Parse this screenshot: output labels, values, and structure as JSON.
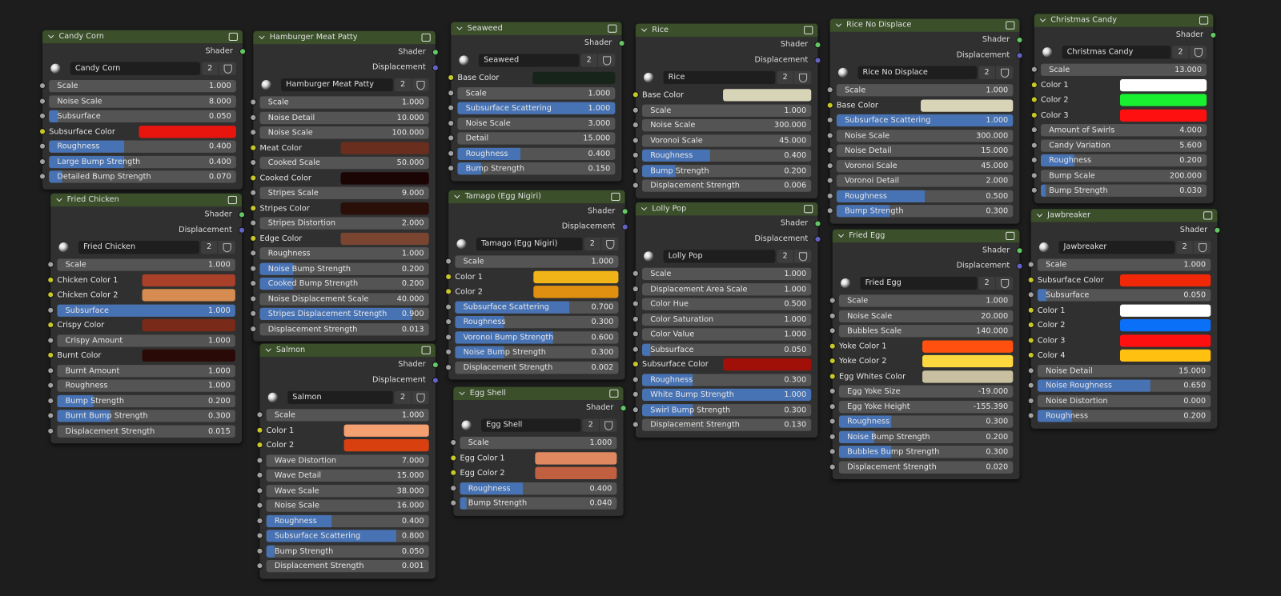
{
  "nodes": [
    {
      "title": "Candy Corn",
      "outputs": [
        "Shader"
      ],
      "material": "Candy Corn",
      "users": 2,
      "inputs": [
        {
          "label": "Scale",
          "value": "1.000"
        },
        {
          "label": "Noise Scale",
          "value": "8.000"
        },
        {
          "label": "Subsurface",
          "value": "0.050",
          "factor": true
        },
        {
          "label": "Subsurface Color",
          "color": "#e8150f"
        },
        {
          "label": "Roughness",
          "value": "0.400",
          "factor": true
        },
        {
          "label": "Large Bump Strength",
          "value": "0.400",
          "factor": true
        },
        {
          "label": "Detailed Bump Strength",
          "value": "0.070",
          "factor": true
        }
      ]
    },
    {
      "title": "Fried Chicken",
      "outputs": [
        "Shader",
        "Displacement"
      ],
      "material": "Fried Chicken",
      "users": 2,
      "inputs": [
        {
          "label": "Scale",
          "value": "1.000"
        },
        {
          "label": "Chicken Color 1",
          "color": "#a8402a"
        },
        {
          "label": "Chicken Color 2",
          "color": "#d68c50"
        },
        {
          "label": "Subsurface",
          "value": "1.000",
          "factor": true
        },
        {
          "label": "Crispy Color",
          "color": "#7a2a18"
        },
        {
          "label": "Crispy Amount",
          "value": "1.000"
        },
        {
          "label": "Burnt Color",
          "color": "#2a0a06"
        },
        {
          "label": "Burnt Amount",
          "value": "1.000"
        },
        {
          "label": "Roughness",
          "value": "1.000"
        },
        {
          "label": "Bump Strength",
          "value": "0.200",
          "factor": true
        },
        {
          "label": "Burnt Bump Strength",
          "value": "0.300",
          "factor": true
        },
        {
          "label": "Displacement Strength",
          "value": "0.015"
        }
      ]
    },
    {
      "title": "Hamburger Meat Patty",
      "outputs": [
        "Shader",
        "Displacement"
      ],
      "material": "Hamburger Meat Patty",
      "users": 2,
      "inputs": [
        {
          "label": "Scale",
          "value": "1.000"
        },
        {
          "label": "Noise Detail",
          "value": "10.000"
        },
        {
          "label": "Noise Scale",
          "value": "100.000"
        },
        {
          "label": "Meat Color",
          "color": "#6a2e1e"
        },
        {
          "label": "Cooked Scale",
          "value": "50.000"
        },
        {
          "label": "Cooked Color",
          "color": "#1a0404"
        },
        {
          "label": "Stripes Scale",
          "value": "9.000"
        },
        {
          "label": "Stripes Color",
          "color": "#2a0e08"
        },
        {
          "label": "Stripes Distortion",
          "value": "2.000"
        },
        {
          "label": "Edge Color",
          "color": "#7a4530"
        },
        {
          "label": "Roughness",
          "value": "1.000"
        },
        {
          "label": "Noise Bump Strength",
          "value": "0.200",
          "factor": true
        },
        {
          "label": "Cooked Bump Strength",
          "value": "0.200",
          "factor": true
        },
        {
          "label": "Noise Displacement Scale",
          "value": "40.000"
        },
        {
          "label": "Stripes Displacement Strength",
          "value": "0.900",
          "factor": true
        },
        {
          "label": "Displacement Strength",
          "value": "0.013"
        }
      ]
    },
    {
      "title": "Salmon",
      "outputs": [
        "Shader",
        "Displacement"
      ],
      "material": "Salmon",
      "users": 2,
      "inputs": [
        {
          "label": "Scale",
          "value": "1.000"
        },
        {
          "label": "Color 1",
          "color": "#f5a070"
        },
        {
          "label": "Color 2",
          "color": "#d84010"
        },
        {
          "label": "Wave Distortion",
          "value": "7.000"
        },
        {
          "label": "Wave Detail",
          "value": "15.000"
        },
        {
          "label": "Wave Scale",
          "value": "38.000"
        },
        {
          "label": "Noise Scale",
          "value": "16.000"
        },
        {
          "label": "Roughness",
          "value": "0.400",
          "factor": true
        },
        {
          "label": "Subsurface Scattering",
          "value": "0.800",
          "factor": true
        },
        {
          "label": "Bump Strength",
          "value": "0.050",
          "factor": true
        },
        {
          "label": "Displacement Strength",
          "value": "0.001"
        }
      ]
    },
    {
      "title": "Seaweed",
      "outputs": [
        "Shader"
      ],
      "material": "Seaweed",
      "users": 2,
      "inputs": [
        {
          "label": "Base Color",
          "color": "#16241a"
        },
        {
          "label": "Scale",
          "value": "1.000"
        },
        {
          "label": "Subsurface Scattering",
          "value": "1.000",
          "factor": true
        },
        {
          "label": "Noise Scale",
          "value": "3.000"
        },
        {
          "label": "Detail",
          "value": "15.000"
        },
        {
          "label": "Roughness",
          "value": "0.400",
          "factor": true
        },
        {
          "label": "Bump Strength",
          "value": "0.150",
          "factor": true
        }
      ]
    },
    {
      "title": "Tamago (Egg Nigiri)",
      "outputs": [
        "Shader",
        "Displacement"
      ],
      "material": "Tamago (Egg Nigiri)",
      "users": 2,
      "inputs": [
        {
          "label": "Scale",
          "value": "1.000"
        },
        {
          "label": "Color 1",
          "color": "#f0b418"
        },
        {
          "label": "Color 2",
          "color": "#e09010"
        },
        {
          "label": "Subsurface Scattering",
          "value": "0.700",
          "factor": true
        },
        {
          "label": "Roughness",
          "value": "0.300",
          "factor": true
        },
        {
          "label": "Voronoi Bump Strength",
          "value": "0.600",
          "factor": true
        },
        {
          "label": "Noise Bump Strength",
          "value": "0.300",
          "factor": true
        },
        {
          "label": "Displacement Strength",
          "value": "0.002"
        }
      ]
    },
    {
      "title": "Egg Shell",
      "outputs": [
        "Shader"
      ],
      "material": "Egg Shell",
      "users": 2,
      "inputs": [
        {
          "label": "Scale",
          "value": "1.000"
        },
        {
          "label": "Egg Color 1",
          "color": "#e08860"
        },
        {
          "label": "Egg Color 2",
          "color": "#c06040"
        },
        {
          "label": "Roughness",
          "value": "0.400",
          "factor": true
        },
        {
          "label": "Bump Strength",
          "value": "0.040",
          "factor": true
        }
      ]
    },
    {
      "title": "Rice",
      "outputs": [
        "Shader",
        "Displacement"
      ],
      "material": "Rice",
      "users": 2,
      "inputs": [
        {
          "label": "Base Color",
          "color": "#d8d4b8"
        },
        {
          "label": "Scale",
          "value": "1.000"
        },
        {
          "label": "Noise Scale",
          "value": "300.000"
        },
        {
          "label": "Voronoi Scale",
          "value": "45.000"
        },
        {
          "label": "Roughness",
          "value": "0.400",
          "factor": true
        },
        {
          "label": "Bump Strength",
          "value": "0.200",
          "factor": true
        },
        {
          "label": "Displacement Strength",
          "value": "0.006"
        }
      ]
    },
    {
      "title": "Lolly Pop",
      "outputs": [
        "Shader",
        "Displacement"
      ],
      "material": "Lolly Pop",
      "users": 2,
      "inputs": [
        {
          "label": "Scale",
          "value": "1.000"
        },
        {
          "label": "Displacement Area Scale",
          "value": "1.000"
        },
        {
          "label": "Color Hue",
          "value": "0.500"
        },
        {
          "label": "Color Saturation",
          "value": "1.000"
        },
        {
          "label": "Color Value",
          "value": "1.000"
        },
        {
          "label": "Subsurface",
          "value": "0.050",
          "factor": true
        },
        {
          "label": "Subsurface Color",
          "color": "#a01008"
        },
        {
          "label": "Roughness",
          "value": "0.300",
          "factor": true
        },
        {
          "label": "White Bump Strength",
          "value": "1.000",
          "factor": true
        },
        {
          "label": "Swirl Bump Strength",
          "value": "0.300",
          "factor": true
        },
        {
          "label": "Displacement Strength",
          "value": "0.130"
        }
      ]
    },
    {
      "title": "Rice No Displace",
      "outputs": [
        "Shader",
        "Displacement"
      ],
      "material": "Rice No Displace",
      "users": 2,
      "inputs": [
        {
          "label": "Scale",
          "value": "1.000"
        },
        {
          "label": "Base Color",
          "color": "#d8d4b8"
        },
        {
          "label": "Subsurface Scattering",
          "value": "1.000",
          "factor": true
        },
        {
          "label": "Noise Scale",
          "value": "300.000"
        },
        {
          "label": "Noise Detail",
          "value": "15.000"
        },
        {
          "label": "Voronoi Scale",
          "value": "45.000"
        },
        {
          "label": "Voronoi Detail",
          "value": "2.000"
        },
        {
          "label": "Roughness",
          "value": "0.500",
          "factor": true
        },
        {
          "label": "Bump Strength",
          "value": "0.300",
          "factor": true
        }
      ]
    },
    {
      "title": "Fried Egg",
      "outputs": [
        "Shader",
        "Displacement"
      ],
      "material": "Fried Egg",
      "users": 2,
      "inputs": [
        {
          "label": "Scale",
          "value": "1.000"
        },
        {
          "label": "Noise Scale",
          "value": "20.000"
        },
        {
          "label": "Bubbles Scale",
          "value": "140.000"
        },
        {
          "label": "Yoke Color 1",
          "color": "#ff5010"
        },
        {
          "label": "Yoke Color 2",
          "color": "#ffd840"
        },
        {
          "label": "Egg Whites Color",
          "color": "#c8c0a0"
        },
        {
          "label": "Egg Yoke Size",
          "value": "-19.000"
        },
        {
          "label": "Egg Yoke Height",
          "value": "-155.390"
        },
        {
          "label": "Roughness",
          "value": "0.300",
          "factor": true
        },
        {
          "label": "Noise Bump Strength",
          "value": "0.200",
          "factor": true
        },
        {
          "label": "Bubbles Bump Strength",
          "value": "0.300",
          "factor": true
        },
        {
          "label": "Displacement Strength",
          "value": "0.020"
        }
      ]
    },
    {
      "title": "Christmas Candy",
      "outputs": [
        "Shader"
      ],
      "material": "Christmas Candy",
      "users": 2,
      "inputs": [
        {
          "label": "Scale",
          "value": "13.000"
        },
        {
          "label": "Color 1",
          "color": "#ffffff"
        },
        {
          "label": "Color 2",
          "color": "#18f030"
        },
        {
          "label": "Color 3",
          "color": "#ff1010"
        },
        {
          "label": "Amount of Swirls",
          "value": "4.000"
        },
        {
          "label": "Candy Variation",
          "value": "5.600"
        },
        {
          "label": "Roughness",
          "value": "0.200",
          "factor": true
        },
        {
          "label": "Bump Scale",
          "value": "200.000"
        },
        {
          "label": "Bump Strength",
          "value": "0.030",
          "factor": true
        }
      ]
    },
    {
      "title": "Jawbreaker",
      "outputs": [
        "Shader"
      ],
      "material": "Jawbreaker",
      "users": 2,
      "inputs": [
        {
          "label": "Scale",
          "value": "1.000"
        },
        {
          "label": "Subsurface Color",
          "color": "#f02808"
        },
        {
          "label": "Subsurface",
          "value": "0.050",
          "factor": true
        },
        {
          "label": "Color 1",
          "color": "#ffffff"
        },
        {
          "label": "Color 2",
          "color": "#0a70f8"
        },
        {
          "label": "Color 3",
          "color": "#ff1010"
        },
        {
          "label": "Color 4",
          "color": "#ffc010"
        },
        {
          "label": "Noise Detail",
          "value": "15.000"
        },
        {
          "label": "Noise Roughness",
          "value": "0.650",
          "factor": true
        },
        {
          "label": "Noise Distortion",
          "value": "0.000"
        },
        {
          "label": "Roughness",
          "value": "0.200",
          "factor": true
        }
      ]
    }
  ]
}
